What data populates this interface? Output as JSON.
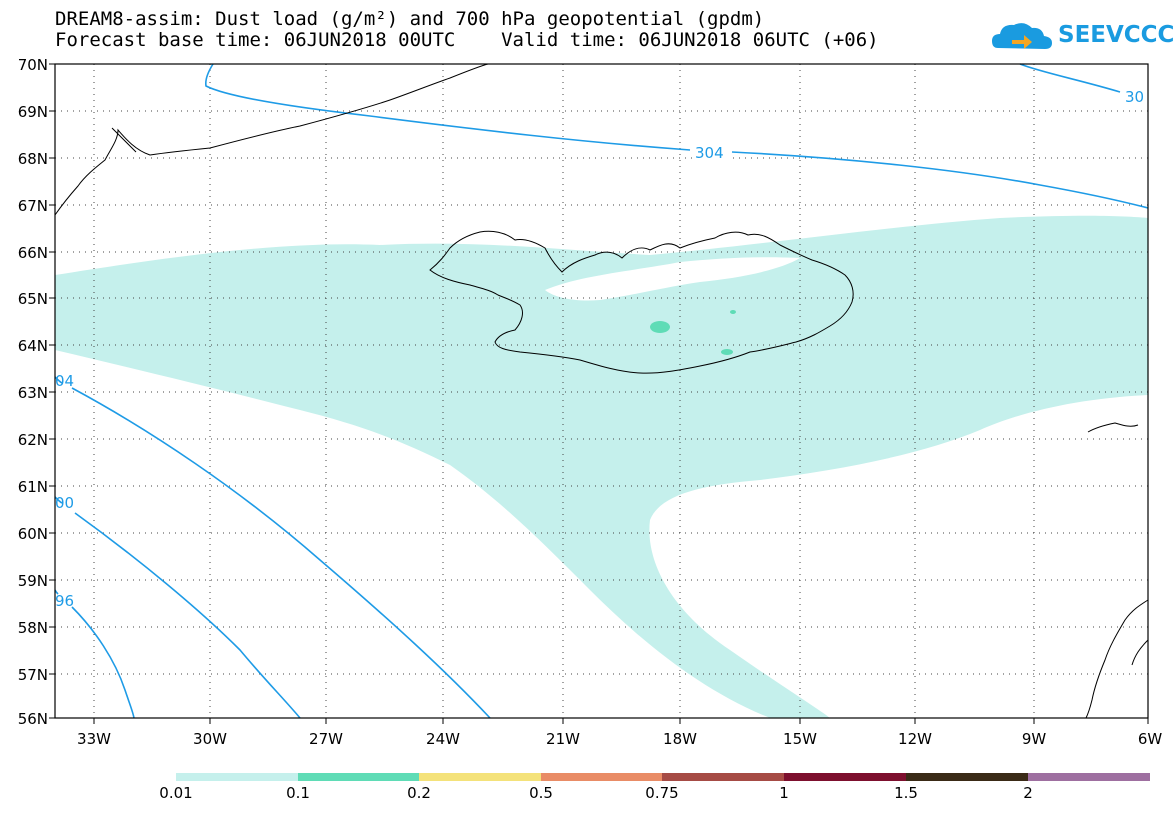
{
  "header": {
    "title_line1": "DREAM8-assim: Dust load (g/m²) and 700 hPa geopotential (gpdm)",
    "title_line2": "Forecast base time: 06JUN2018 00UTC    Valid time: 06JUN2018 06UTC (+06)"
  },
  "logo": {
    "text": "SEEVCCC",
    "icon": "cloud-arrow-icon",
    "color": "#1a9be0"
  },
  "map": {
    "lat_labels": [
      "70N",
      "69N",
      "68N",
      "67N",
      "66N",
      "65N",
      "64N",
      "63N",
      "62N",
      "61N",
      "60N",
      "59N",
      "58N",
      "57N",
      "56N"
    ],
    "lon_labels": [
      "33W",
      "30W",
      "27W",
      "24W",
      "21W",
      "18W",
      "15W",
      "12W",
      "9W",
      "6W"
    ],
    "contour_labels": [
      "304",
      "30",
      "04",
      "00",
      "96"
    ],
    "contour_color": "#1e9be6",
    "dust_fill_color": "#c5f0ec",
    "dust_patch_color": "#5fdcb6"
  },
  "colorbar": {
    "colors": [
      "#c5f0ec",
      "#5fdcb6",
      "#f4e27a",
      "#e98c66",
      "#a64b45",
      "#7d0f2e",
      "#3a2a16",
      "#9e6fa0"
    ],
    "labels": [
      "0.01",
      "0.1",
      "0.2",
      "0.5",
      "0.75",
      "1",
      "1.5",
      "2"
    ]
  }
}
